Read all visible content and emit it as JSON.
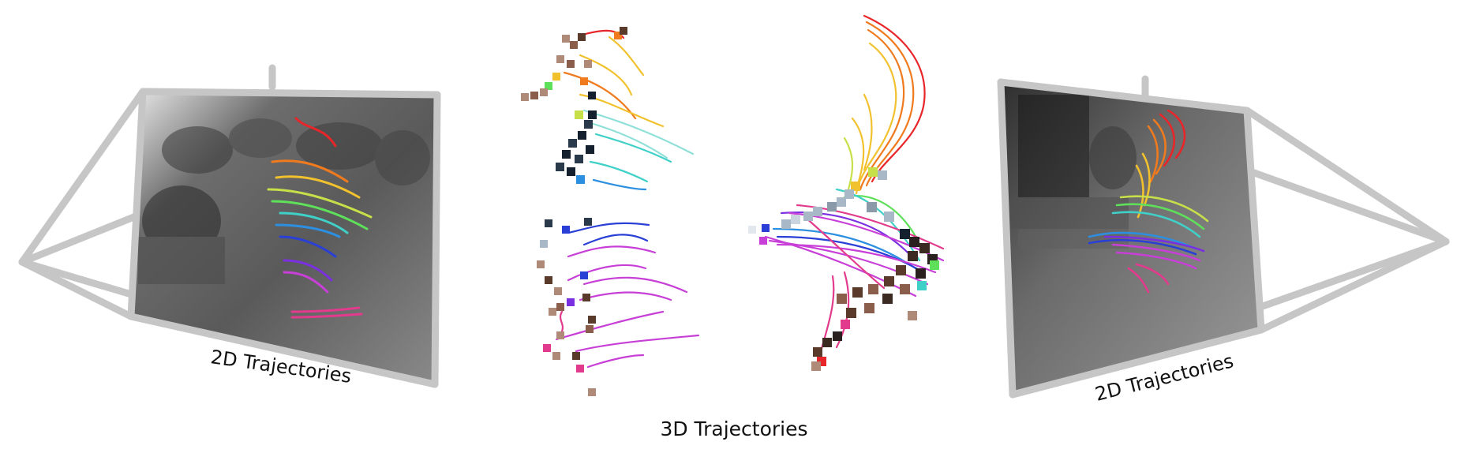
{
  "labels": {
    "left_camera": "2D Trajectories",
    "right_camera": "2D Trajectories",
    "center": "3D Trajectories"
  },
  "colors": {
    "frame": "#c6c6c6",
    "trajectory_palette": [
      "#e8262a",
      "#f07a1e",
      "#f2c12e",
      "#c7e04a",
      "#5fe05a",
      "#3fd0c8",
      "#2d8fe0",
      "#2a3fd6",
      "#7a2fe0",
      "#c83fd8",
      "#e23a8c"
    ],
    "marker_palette": [
      "#5a3a2a",
      "#8a5e4a",
      "#b08a78",
      "#2b3a4a",
      "#14202e",
      "#a9b8c6"
    ]
  },
  "icons": {
    "left_frustum": "camera-frustum-icon",
    "right_frustum": "camera-frustum-icon"
  }
}
